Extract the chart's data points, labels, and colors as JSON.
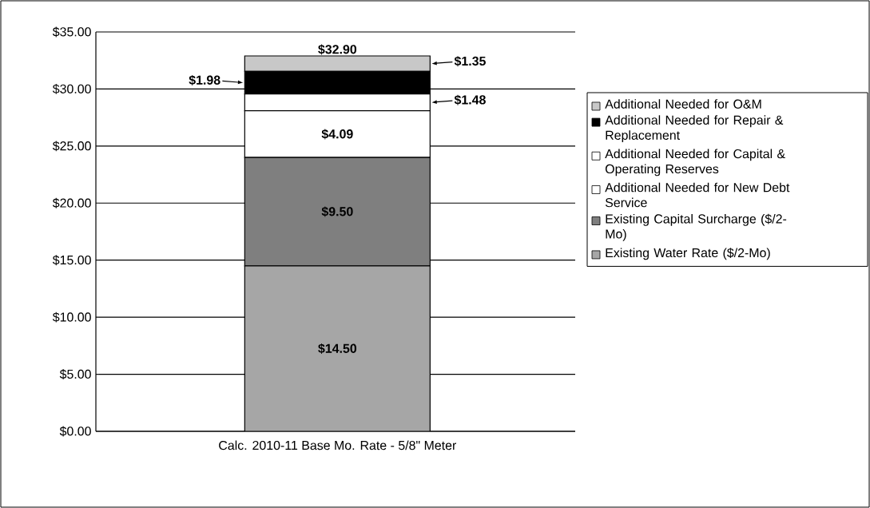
{
  "chart_data": {
    "type": "bar",
    "stacked": true,
    "categories": [
      "Calc. 2010-11 Base Mo. Rate - 5/8\" Meter"
    ],
    "series": [
      {
        "name": "Existing Water Rate ($/2-Mo)",
        "color": "#a6a6a6",
        "values": [
          14.5
        ],
        "value_labels": [
          "$14.50"
        ]
      },
      {
        "name": "Existing Capital Surcharge ($/2-Mo)",
        "color": "#7f7f7f",
        "values": [
          9.5
        ],
        "value_labels": [
          "$9.50"
        ]
      },
      {
        "name": "Additional Needed for New Debt Service",
        "color": "#ffffff",
        "values": [
          4.09
        ],
        "value_labels": [
          "$4.09"
        ]
      },
      {
        "name": "Additional Needed for Capital & Operating Reserves",
        "color": "#ffffff",
        "values": [
          1.48
        ],
        "value_labels": [
          "$1.48"
        ]
      },
      {
        "name": "Additional Needed for Repair & Replacement",
        "color": "#000000",
        "values": [
          1.98
        ],
        "value_labels": [
          "$1.98"
        ]
      },
      {
        "name": "Additional Needed for O&M",
        "color": "#c8c8c8",
        "values": [
          1.35
        ],
        "value_labels": [
          "$1.35"
        ]
      }
    ],
    "totals": [
      "$32.90"
    ],
    "ylim": [
      0,
      35
    ],
    "yticks": [
      {
        "value": 0,
        "label": "$0.00"
      },
      {
        "value": 5,
        "label": "$5.00"
      },
      {
        "value": 10,
        "label": "$10.00"
      },
      {
        "value": 15,
        "label": "$15.00"
      },
      {
        "value": 20,
        "label": "$20.00"
      },
      {
        "value": 25,
        "label": "$25.00"
      },
      {
        "value": 30,
        "label": "$30.00"
      },
      {
        "value": 35,
        "label": "$35.00"
      }
    ],
    "grid": "y",
    "legend": "right"
  }
}
